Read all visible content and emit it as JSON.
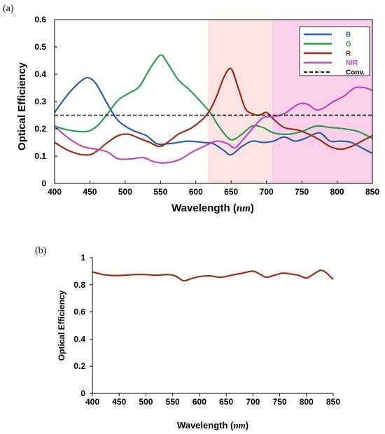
{
  "chart_data": [
    {
      "type": "line",
      "panel_label": "(a)",
      "xlabel": "Wavelength (nm)",
      "xlabel_text": "Wavelength ",
      "xlabel_unit": "nm",
      "ylabel": "Optical Efficiency",
      "xlim": [
        400,
        850
      ],
      "ylim": [
        0,
        0.6
      ],
      "xticks": [
        "400",
        "450",
        "500",
        "550",
        "600",
        "650",
        "700",
        "750",
        "800",
        "850"
      ],
      "yticks": [
        "0",
        "0.1",
        "0.2",
        "0.3",
        "0.4",
        "0.5",
        "0.6"
      ],
      "grid": false,
      "legend_position": "top-right",
      "shaded_regions": [
        {
          "x0": 617,
          "x1": 708,
          "color": "#fde3e3"
        },
        {
          "x0": 708,
          "x1": 850,
          "color": "#fbd0ea"
        }
      ],
      "series": [
        {
          "name": "B",
          "color": "#2560b0",
          "dashed": false,
          "points": [
            [
              400,
              0.26
            ],
            [
              420,
              0.33
            ],
            [
              440,
              0.38
            ],
            [
              450,
              0.385
            ],
            [
              460,
              0.36
            ],
            [
              475,
              0.29
            ],
            [
              490,
              0.23
            ],
            [
              510,
              0.195
            ],
            [
              530,
              0.175
            ],
            [
              545,
              0.145
            ],
            [
              560,
              0.145
            ],
            [
              575,
              0.15
            ],
            [
              590,
              0.155
            ],
            [
              610,
              0.15
            ],
            [
              625,
              0.145
            ],
            [
              640,
              0.12
            ],
            [
              650,
              0.105
            ],
            [
              665,
              0.135
            ],
            [
              680,
              0.155
            ],
            [
              695,
              0.15
            ],
            [
              710,
              0.155
            ],
            [
              725,
              0.17
            ],
            [
              740,
              0.155
            ],
            [
              755,
              0.165
            ],
            [
              775,
              0.185
            ],
            [
              790,
              0.155
            ],
            [
              805,
              0.155
            ],
            [
              820,
              0.15
            ],
            [
              835,
              0.13
            ],
            [
              850,
              0.11
            ]
          ]
        },
        {
          "name": "G",
          "color": "#27a04c",
          "dashed": false,
          "points": [
            [
              400,
              0.21
            ],
            [
              420,
              0.195
            ],
            [
              445,
              0.19
            ],
            [
              460,
              0.21
            ],
            [
              475,
              0.255
            ],
            [
              490,
              0.305
            ],
            [
              505,
              0.33
            ],
            [
              520,
              0.355
            ],
            [
              535,
              0.42
            ],
            [
              550,
              0.47
            ],
            [
              560,
              0.44
            ],
            [
              575,
              0.38
            ],
            [
              590,
              0.345
            ],
            [
              605,
              0.305
            ],
            [
              620,
              0.26
            ],
            [
              635,
              0.2
            ],
            [
              650,
              0.16
            ],
            [
              665,
              0.18
            ],
            [
              680,
              0.21
            ],
            [
              695,
              0.205
            ],
            [
              710,
              0.185
            ],
            [
              730,
              0.18
            ],
            [
              750,
              0.19
            ],
            [
              770,
              0.21
            ],
            [
              790,
              0.205
            ],
            [
              810,
              0.2
            ],
            [
              830,
              0.19
            ],
            [
              850,
              0.165
            ]
          ]
        },
        {
          "name": "R",
          "color": "#9a2e14",
          "dashed": false,
          "points": [
            [
              400,
              0.15
            ],
            [
              420,
              0.12
            ],
            [
              440,
              0.105
            ],
            [
              455,
              0.11
            ],
            [
              475,
              0.15
            ],
            [
              490,
              0.175
            ],
            [
              505,
              0.18
            ],
            [
              520,
              0.165
            ],
            [
              535,
              0.15
            ],
            [
              548,
              0.135
            ],
            [
              560,
              0.15
            ],
            [
              575,
              0.18
            ],
            [
              595,
              0.205
            ],
            [
              615,
              0.25
            ],
            [
              628,
              0.31
            ],
            [
              640,
              0.39
            ],
            [
              650,
              0.42
            ],
            [
              660,
              0.35
            ],
            [
              670,
              0.275
            ],
            [
              680,
              0.255
            ],
            [
              690,
              0.25
            ],
            [
              700,
              0.26
            ],
            [
              710,
              0.235
            ],
            [
              725,
              0.205
            ],
            [
              745,
              0.195
            ],
            [
              760,
              0.18
            ],
            [
              775,
              0.16
            ],
            [
              790,
              0.135
            ],
            [
              805,
              0.125
            ],
            [
              820,
              0.135
            ],
            [
              835,
              0.155
            ],
            [
              850,
              0.175
            ]
          ]
        },
        {
          "name": "NIR",
          "color": "#c247c2",
          "dashed": false,
          "points": [
            [
              400,
              0.21
            ],
            [
              420,
              0.165
            ],
            [
              440,
              0.135
            ],
            [
              460,
              0.125
            ],
            [
              475,
              0.115
            ],
            [
              490,
              0.09
            ],
            [
              510,
              0.09
            ],
            [
              525,
              0.095
            ],
            [
              540,
              0.08
            ],
            [
              555,
              0.075
            ],
            [
              575,
              0.085
            ],
            [
              595,
              0.115
            ],
            [
              615,
              0.14
            ],
            [
              630,
              0.155
            ],
            [
              645,
              0.145
            ],
            [
              655,
              0.13
            ],
            [
              665,
              0.155
            ],
            [
              680,
              0.2
            ],
            [
              695,
              0.24
            ],
            [
              710,
              0.245
            ],
            [
              725,
              0.255
            ],
            [
              745,
              0.29
            ],
            [
              758,
              0.29
            ],
            [
              770,
              0.27
            ],
            [
              780,
              0.275
            ],
            [
              795,
              0.3
            ],
            [
              810,
              0.32
            ],
            [
              825,
              0.35
            ],
            [
              840,
              0.35
            ],
            [
              850,
              0.34
            ]
          ]
        },
        {
          "name": "Conv.",
          "color": "#000000",
          "dashed": true,
          "points": [
            [
              400,
              0.25
            ],
            [
              850,
              0.25
            ]
          ]
        }
      ]
    },
    {
      "type": "line",
      "panel_label": "(b)",
      "xlabel": "Wavelength (nm)",
      "xlabel_text": "Wavelength ",
      "xlabel_unit": "nm",
      "ylabel": "Optical Efficiency",
      "xlim": [
        400,
        850
      ],
      "ylim": [
        0,
        1
      ],
      "xticks": [
        "400",
        "450",
        "500",
        "550",
        "600",
        "650",
        "700",
        "750",
        "800",
        "850"
      ],
      "yticks": [
        "0",
        "0.2",
        "0.4",
        "0.6",
        "0.8",
        "1"
      ],
      "grid": false,
      "series": [
        {
          "color": "#9a2e14",
          "dashed": false,
          "points": [
            [
              400,
              0.895
            ],
            [
              420,
              0.875
            ],
            [
              440,
              0.868
            ],
            [
              460,
              0.87
            ],
            [
              480,
              0.875
            ],
            [
              500,
              0.875
            ],
            [
              520,
              0.87
            ],
            [
              540,
              0.875
            ],
            [
              555,
              0.865
            ],
            [
              570,
              0.83
            ],
            [
              585,
              0.845
            ],
            [
              600,
              0.86
            ],
            [
              620,
              0.865
            ],
            [
              640,
              0.855
            ],
            [
              660,
              0.87
            ],
            [
              680,
              0.885
            ],
            [
              700,
              0.9
            ],
            [
              712,
              0.88
            ],
            [
              725,
              0.855
            ],
            [
              740,
              0.87
            ],
            [
              755,
              0.885
            ],
            [
              770,
              0.88
            ],
            [
              785,
              0.87
            ],
            [
              800,
              0.85
            ],
            [
              812,
              0.875
            ],
            [
              825,
              0.905
            ],
            [
              835,
              0.895
            ],
            [
              850,
              0.84
            ]
          ]
        }
      ]
    }
  ]
}
